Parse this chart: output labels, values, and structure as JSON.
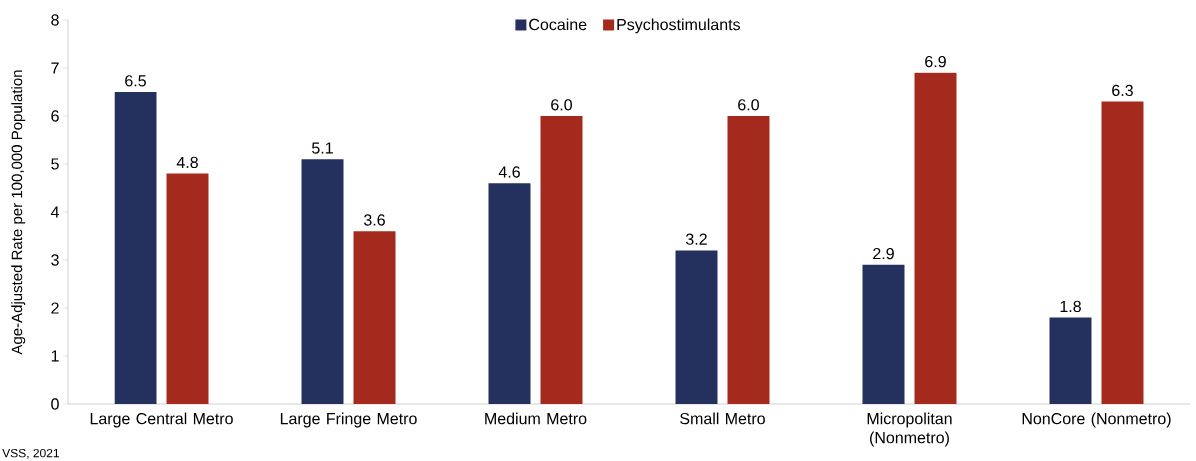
{
  "chart_data": {
    "type": "bar",
    "ylabel": "Age-Adjusted Rate per 100,000 Population",
    "categories": [
      "Large Central Metro",
      "Large Fringe Metro",
      "Medium Metro",
      "Small Metro",
      "Micropolitan (Nonmetro)",
      "NonCore (Nonmetro)"
    ],
    "series": [
      {
        "name": "Cocaine",
        "color": "#24305e",
        "values": [
          6.5,
          5.1,
          4.6,
          3.2,
          2.9,
          1.8
        ],
        "value_labels": [
          "6.5",
          "5.1",
          "4.6",
          "3.2",
          "2.9",
          "1.8"
        ]
      },
      {
        "name": "Psychostimulants",
        "color": "#a52a1e",
        "values": [
          4.8,
          3.6,
          6.0,
          6.0,
          6.9,
          6.3
        ],
        "value_labels": [
          "4.8",
          "3.6",
          "6.0",
          "6.0",
          "6.9",
          "6.3"
        ]
      }
    ],
    "ylim": [
      0,
      8
    ],
    "yticks": [
      0,
      1,
      2,
      3,
      4,
      5,
      6,
      7,
      8
    ],
    "grid": false,
    "legend": "top",
    "annotations": [
      "VSS, 2021"
    ]
  }
}
